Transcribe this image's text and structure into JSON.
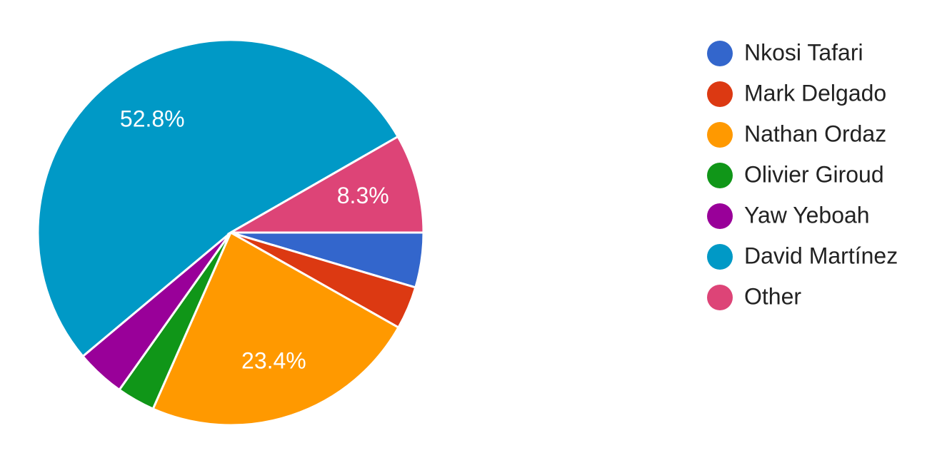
{
  "chart_data": {
    "type": "pie",
    "categories": [
      "Nkosi Tafari",
      "Mark Delgado",
      "Nathan Ordaz",
      "Olivier Giroud",
      "Yaw Yeboah",
      "David Martínez",
      "Other"
    ],
    "values": [
      4.6,
      3.6,
      23.4,
      3.2,
      4.1,
      52.8,
      8.3
    ],
    "value_labels": [
      null,
      null,
      "23.4%",
      null,
      null,
      "52.8%",
      "8.3%"
    ],
    "colors": [
      "#3366cc",
      "#dc3912",
      "#ff9900",
      "#109618",
      "#990099",
      "#0099c6",
      "#dd4477"
    ],
    "legend": "right"
  }
}
